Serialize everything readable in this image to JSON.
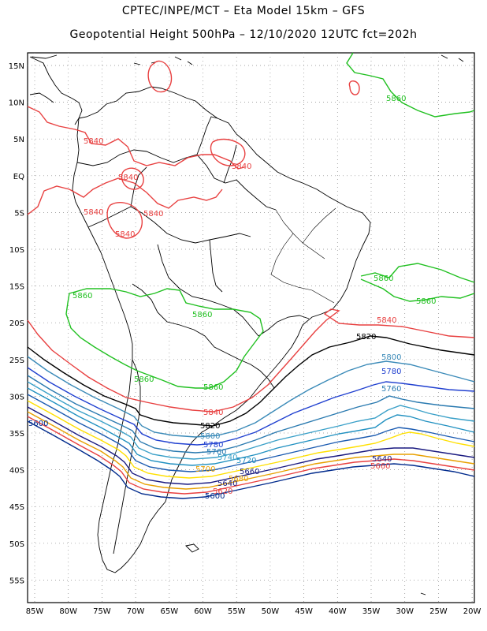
{
  "header": {
    "line1": "CPTEC/INPE/MCT –  Eta Model 15km – GFS",
    "line2": "Geopotential Height 500hPa – 12/10/2020 12UTC fct=202h"
  },
  "map": {
    "lat_labels": [
      "15N",
      "10N",
      "5N",
      "EQ",
      "5S",
      "10S",
      "15S",
      "20S",
      "25S",
      "30S",
      "35S",
      "40S",
      "45S",
      "50S",
      "55S"
    ],
    "lon_labels": [
      "85W",
      "80W",
      "75W",
      "70W",
      "65W",
      "60W",
      "55W",
      "50W",
      "45W",
      "40W",
      "35W",
      "30W",
      "25W",
      "20W"
    ],
    "colors": {
      "c5580": "#1a1a80",
      "c5600": "#002a8c",
      "c5620": "#005aa0",
      "c5640": "#1060b0",
      "c5660": "#ffe000",
      "c5680": "#e8a000",
      "c5700": "#e04040",
      "c5720": "#2090c0",
      "c5740": "#3aa0c8",
      "c5760": "#2a7ab0",
      "c5780": "#2040d0",
      "c5800": "#3a8ab8",
      "c5820": "#000000",
      "c5840": "#e84040",
      "c5860": "#20c020"
    },
    "contour_labels": {
      "l5860_ne": "5860",
      "l5840_n1": "5840",
      "l5840_n2": "5840",
      "l5840_n3": "5840",
      "l5840_n4": "5840",
      "l5840_n5": "5840",
      "l5840_n6": "5840",
      "l5860_e1": "5860",
      "l5860_e2": "5860",
      "l5860_w": "5860",
      "l5860_c": "5860",
      "l5860_s1": "5860",
      "l5860_s2": "5860",
      "l5840_e": "5840",
      "l5820_e": "5820",
      "l5800_e": "5800",
      "l5780_e": "5780",
      "l5760_e": "5760",
      "l5840_s": "5840",
      "l5820_s": "5820",
      "l5800_s": "5800",
      "l5780_s": "5780",
      "l5760_s": "5760",
      "l5740_s": "5740",
      "l5720_s": "5720",
      "l5700_s": "5700",
      "l5680_s": "5680",
      "l5660_s": "5660",
      "l5640_s": "5640",
      "l5620_s": "5620",
      "l5600_s": "5600",
      "l5600_w": "5600",
      "l5640_e": "5640",
      "l5660_e": "5660"
    }
  }
}
